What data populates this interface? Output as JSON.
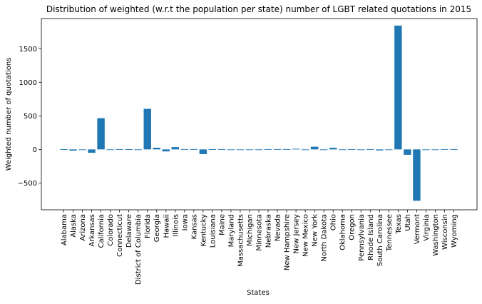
{
  "chart_data": {
    "type": "bar",
    "title": "Distribution of weighted (w.r.t the population per state) number of LGBT related quotations in 2015",
    "xlabel": "States",
    "ylabel": "Weighted number of quotations",
    "ylim": [
      -900,
      1950
    ],
    "yticks": [
      -500,
      0,
      500,
      1000,
      1500
    ],
    "grid": false,
    "bar_color": "#1f77b4",
    "categories": [
      "Alabama",
      "Alaska",
      "Arizona",
      "Arkansas",
      "California",
      "Colorado",
      "Connecticut",
      "Delaware",
      "District of Columbia",
      "Florida",
      "Georgia",
      "Hawaii",
      "Illinois",
      "Iowa",
      "Kansas",
      "Kentucky",
      "Louisiana",
      "Maine",
      "Maryland",
      "Massachusetts",
      "Michigan",
      "Minnesota",
      "Nebraska",
      "Nevada",
      "New Hampshire",
      "New Jersey",
      "New Mexico",
      "New York",
      "North Dakota",
      "Ohio",
      "Oklahoma",
      "Oregon",
      "Pennsylvania",
      "Rhode Island",
      "South Carolina",
      "Tennessee",
      "Texas",
      "Utah",
      "Vermont",
      "Virginia",
      "Washington",
      "Wisconsin",
      "Wyoming"
    ],
    "values": [
      3,
      -18,
      0,
      -50,
      465,
      -8,
      5,
      3,
      -10,
      605,
      25,
      -30,
      35,
      5,
      5,
      -70,
      3,
      5,
      -5,
      0,
      0,
      0,
      5,
      5,
      5,
      10,
      -10,
      40,
      -10,
      25,
      -8,
      5,
      0,
      5,
      -15,
      0,
      1845,
      -80,
      -765,
      0,
      0,
      5,
      5
    ]
  }
}
